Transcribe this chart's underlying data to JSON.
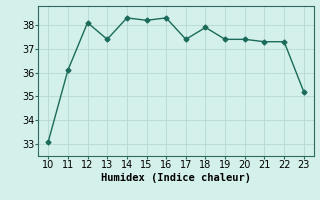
{
  "x": [
    10,
    11,
    12,
    13,
    14,
    15,
    16,
    17,
    18,
    19,
    20,
    21,
    22,
    23
  ],
  "y": [
    33.1,
    36.1,
    38.1,
    37.4,
    38.3,
    38.2,
    38.3,
    37.4,
    37.9,
    37.4,
    37.4,
    37.3,
    37.3,
    35.2
  ],
  "line_color": "#1a6b5a",
  "marker": "D",
  "marker_size": 2.5,
  "line_width": 1.0,
  "xlabel": "Humidex (Indice chaleur)",
  "xlabel_fontsize": 7.5,
  "tick_fontsize": 7,
  "xlim": [
    9.5,
    23.5
  ],
  "ylim": [
    32.5,
    38.8
  ],
  "yticks": [
    33,
    34,
    35,
    36,
    37,
    38
  ],
  "xticks": [
    10,
    11,
    12,
    13,
    14,
    15,
    16,
    17,
    18,
    19,
    20,
    21,
    22,
    23
  ],
  "bg_color": "#d4f0eb",
  "grid_color": "#b8d8d4",
  "spine_color": "#2d6b5e"
}
